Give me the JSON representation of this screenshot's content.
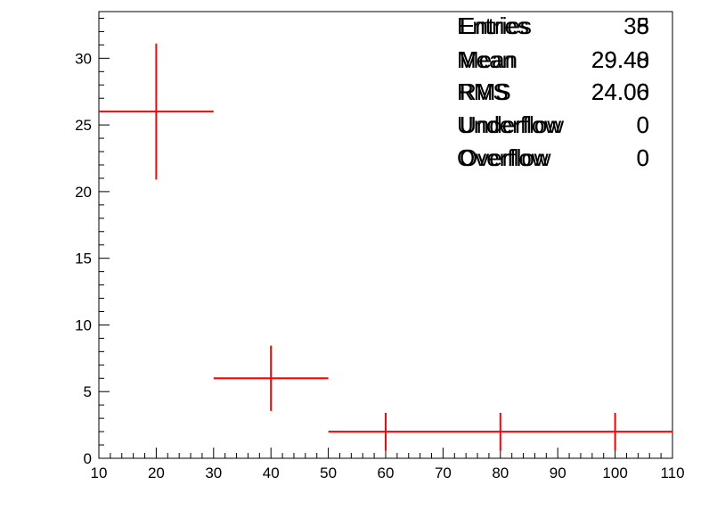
{
  "chart_data": {
    "type": "scatter",
    "title": "",
    "xlabel": "",
    "ylabel": "",
    "xlim": [
      10,
      110
    ],
    "ylim": [
      0,
      33.5
    ],
    "x_ticks": [
      "10",
      "20",
      "30",
      "40",
      "50",
      "60",
      "70",
      "80",
      "90",
      "100",
      "110"
    ],
    "y_ticks": [
      "0",
      "5",
      "10",
      "15",
      "20",
      "25",
      "30"
    ],
    "grid": false,
    "legend": "none",
    "series": [
      {
        "color": "#ff0000",
        "points": [
          {
            "x": 20,
            "xlow": 10,
            "xhigh": 30,
            "y": 26,
            "ylow": 20.9,
            "yhigh": 31.1
          },
          {
            "x": 40,
            "xlow": 30,
            "xhigh": 50,
            "y": 6,
            "ylow": 3.55,
            "yhigh": 8.45
          },
          {
            "x": 60,
            "xlow": 50,
            "xhigh": 70,
            "y": 2,
            "ylow": 0.59,
            "yhigh": 3.41
          },
          {
            "x": 80,
            "xlow": 70,
            "xhigh": 90,
            "y": 2,
            "ylow": 0.59,
            "yhigh": 3.41
          },
          {
            "x": 100,
            "xlow": 90,
            "xhigh": 110,
            "y": 2,
            "ylow": 0.59,
            "yhigh": 3.41
          }
        ]
      }
    ],
    "stats_box": [
      {
        "label": "Entries",
        "label_overlay": "Entries",
        "value": "38",
        "value_overlay": "5"
      },
      {
        "label": "Mean",
        "label_overlay": "Mean",
        "value": "29.40",
        "value_overlay": "29.48"
      },
      {
        "label": "RMS",
        "label_overlay": "RMS",
        "value": "24.00",
        "value_overlay": "24.06"
      },
      {
        "label": "Underflow",
        "label_overlay": "Underflow",
        "value": "0",
        "value_overlay": "0"
      },
      {
        "label": "Overflow",
        "label_overlay": "Overflow",
        "value": "0",
        "value_overlay": "0"
      }
    ]
  }
}
